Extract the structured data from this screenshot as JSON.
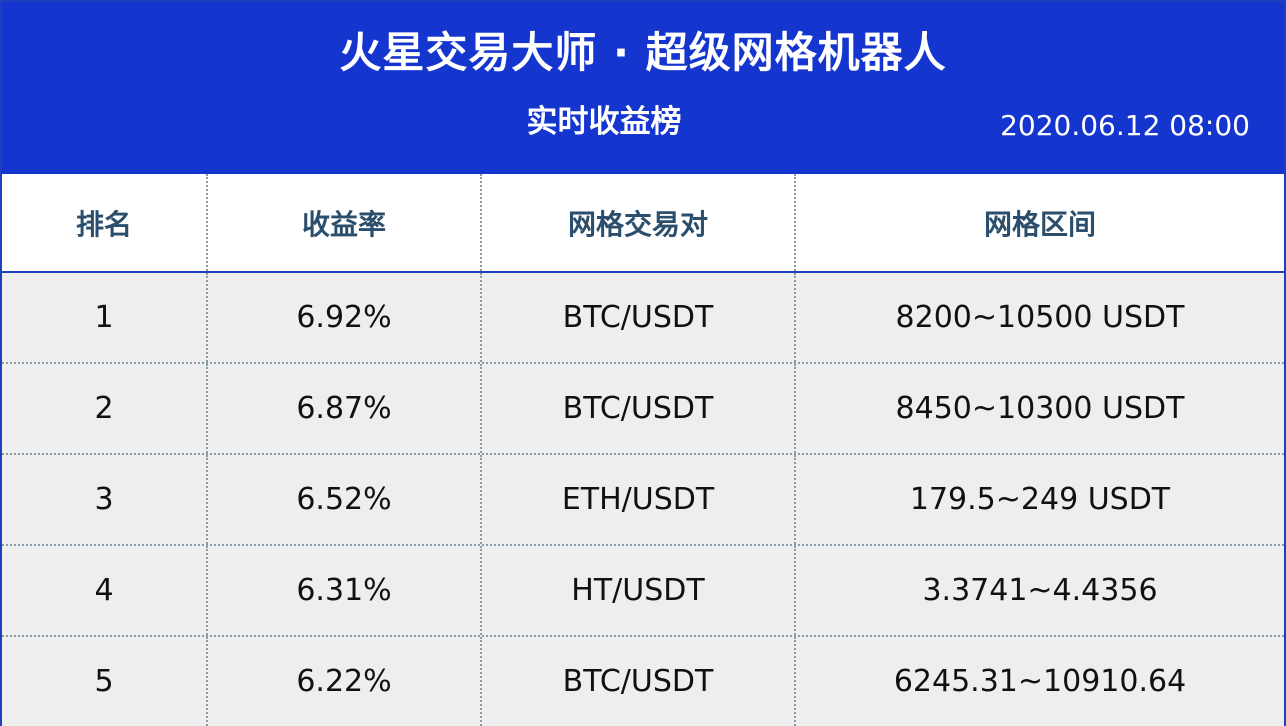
{
  "header": {
    "title": "火星交易大师 · 超级网格机器人",
    "subtitle": "实时收益榜",
    "timestamp": "2020.06.12 08:00"
  },
  "table": {
    "columns": [
      "排名",
      "收益率",
      "网格交易对",
      "网格区间"
    ],
    "rows": [
      {
        "rank": "1",
        "yield": "6.92%",
        "pair": "BTC/USDT",
        "range": "8200~10500 USDT"
      },
      {
        "rank": "2",
        "yield": "6.87%",
        "pair": "BTC/USDT",
        "range": "8450~10300 USDT"
      },
      {
        "rank": "3",
        "yield": "6.52%",
        "pair": "ETH/USDT",
        "range": "179.5~249 USDT"
      },
      {
        "rank": "4",
        "yield": "6.31%",
        "pair": "HT/USDT",
        "range": "3.3741~4.4356"
      },
      {
        "rank": "5",
        "yield": "6.22%",
        "pair": "BTC/USDT",
        "range": "6245.31~10910.64"
      }
    ]
  },
  "colors": {
    "header_bg": "#1535cf",
    "header_text": "#ffffff",
    "column_header_text": "#2a4e6c",
    "row_bg": "#eeeeee"
  }
}
